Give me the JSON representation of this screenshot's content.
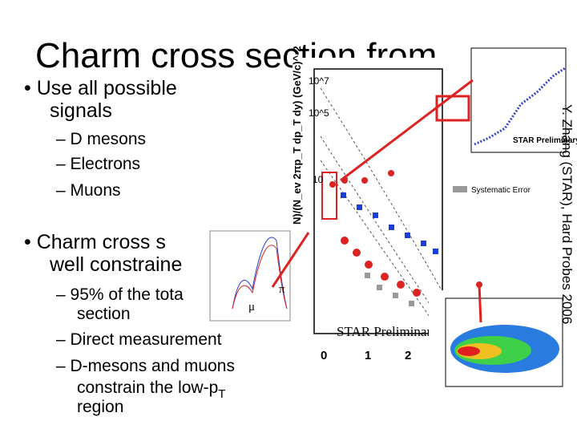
{
  "slide": {
    "title": "Charm cross section from",
    "bullets": [
      {
        "lines": [
          "• Use all possible",
          "signals"
        ],
        "sub": [
          [
            "– D mesons"
          ],
          [
            "– Electrons"
          ],
          [
            "– Muons"
          ]
        ]
      },
      {
        "lines": [
          "• Charm cross s",
          "well constraine"
        ],
        "sub": [
          [
            "– 95% of the tota",
            "section"
          ],
          [
            "– Direct measurement"
          ],
          [
            "– D-mesons and muons",
            "constrain the low-p",
            "T",
            "region"
          ]
        ]
      }
    ],
    "citation": "Y. Zhang (STAR), Hard Probes 2006"
  },
  "plots": {
    "spectrum": {
      "ylabel": "N)/(N_ev 2πp_T dp_T dy) (GeV/c)^-2",
      "yticks": [
        "10^7",
        "10^5",
        "10"
      ],
      "xticks": [
        "0",
        "1",
        "2"
      ],
      "watermark": "STAR Preliminary",
      "legend_systematic": "Systematic Error"
    },
    "muon_inset": {
      "pi_label": "π",
      "mu_label": "μ"
    },
    "d_meson_inset": {
      "watermark": "STAR Preliminary"
    }
  }
}
